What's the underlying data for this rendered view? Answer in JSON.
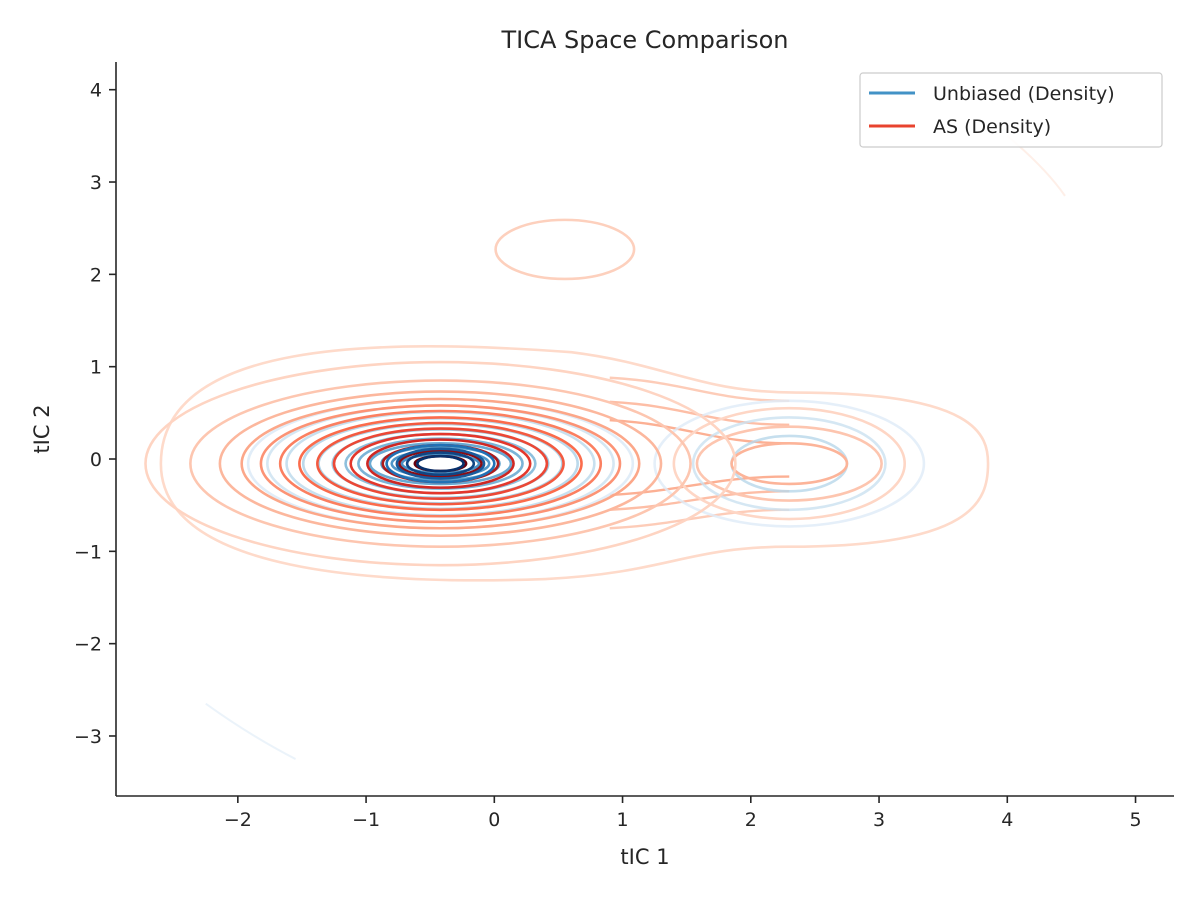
{
  "chart_data": {
    "type": "contour",
    "title": "TICA Space Comparison",
    "xlabel": "tIC 1",
    "ylabel": "tIC 2",
    "xlim": [
      -2.95,
      5.3
    ],
    "ylim": [
      -3.65,
      4.3
    ],
    "xticks": [
      -2,
      -1,
      0,
      1,
      2,
      3,
      4,
      5
    ],
    "yticks": [
      -3,
      -2,
      -1,
      0,
      1,
      2,
      3,
      4
    ],
    "xtick_labels": [
      "−2",
      "−1",
      "0",
      "1",
      "2",
      "3",
      "4",
      "5"
    ],
    "ytick_labels": [
      "−3",
      "−2",
      "−1",
      "0",
      "1",
      "2",
      "3",
      "4"
    ],
    "grid": false,
    "legend_position": "top-right",
    "series": [
      {
        "name": "Unbiased (Density)",
        "legend_color": "#4292c6",
        "colormap": "Blues",
        "main_center": [
          -0.42,
          -0.05
        ],
        "main_rx": [
          0.3,
          0.38,
          0.46,
          0.55,
          0.64,
          0.74,
          0.84,
          0.95,
          1.07,
          1.2,
          1.35,
          1.5
        ],
        "main_ry": [
          0.1,
          0.14,
          0.18,
          0.22,
          0.27,
          0.32,
          0.37,
          0.43,
          0.49,
          0.56,
          0.63,
          0.7
        ],
        "secondary_center": [
          2.3,
          -0.05
        ],
        "secondary_rx": [
          0.45,
          0.75,
          1.05
        ],
        "secondary_ry": [
          0.3,
          0.5,
          0.68
        ]
      },
      {
        "name": "AS (Density)",
        "legend_color": "#e8432e",
        "colormap": "Reds",
        "main_center": [
          -0.42,
          -0.05
        ],
        "main_rx": [
          0.2,
          0.32,
          0.45,
          0.57,
          0.7,
          0.83,
          0.96,
          1.1,
          1.25,
          1.4,
          1.55,
          1.72,
          1.95,
          2.3
        ],
        "main_ry": [
          0.08,
          0.14,
          0.2,
          0.26,
          0.32,
          0.38,
          0.44,
          0.5,
          0.57,
          0.63,
          0.7,
          0.78,
          0.9,
          1.1
        ],
        "secondary_center": [
          2.3,
          -0.05
        ],
        "secondary_rx": [
          0.45,
          0.72,
          0.9
        ],
        "secondary_ry": [
          0.22,
          0.4,
          0.6
        ],
        "outer_blob": {
          "x_range": [
            -2.6,
            3.85
          ],
          "y_range": [
            -1.3,
            1.2
          ]
        },
        "minor_peak": {
          "center": [
            0.55,
            2.27
          ],
          "rx": 0.54,
          "ry": 0.32
        }
      }
    ]
  }
}
